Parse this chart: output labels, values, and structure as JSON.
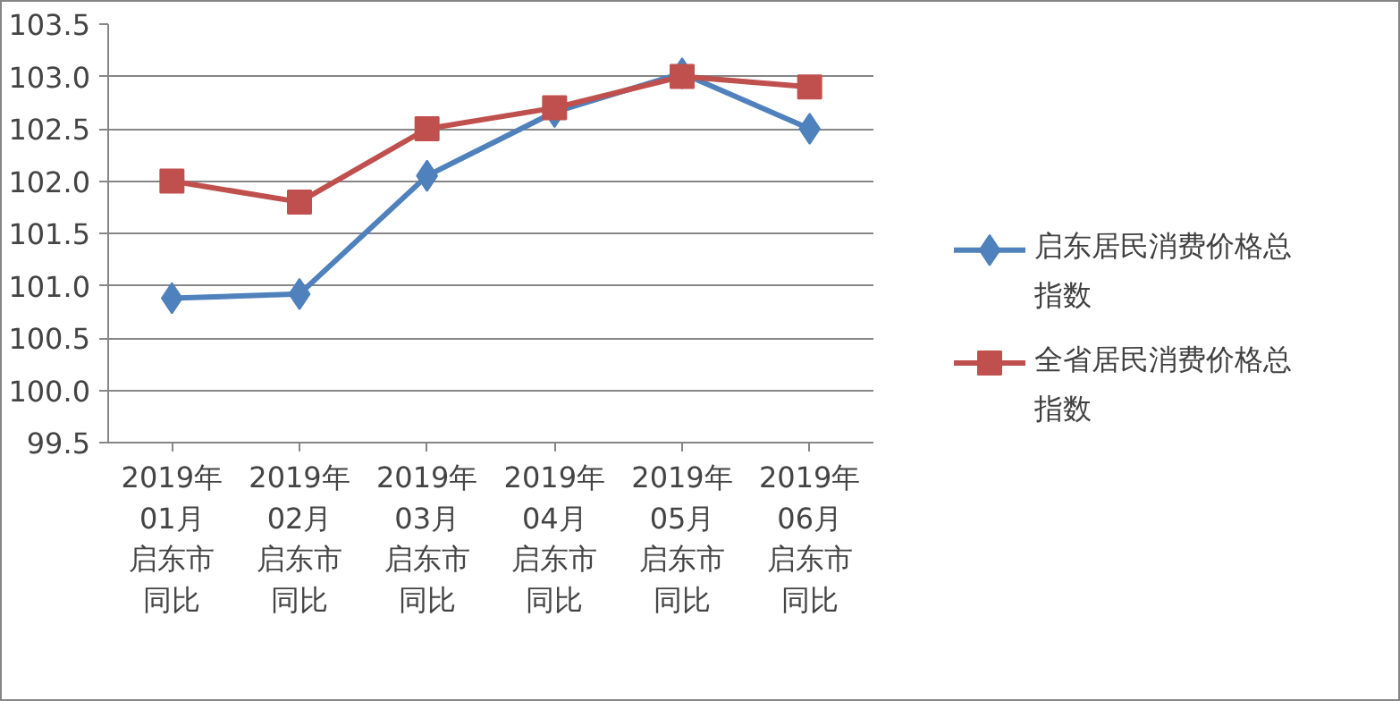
{
  "chart_data": {
    "type": "line",
    "categories": [
      "2019年01月启东市同比",
      "2019年02月启东市同比",
      "2019年03月启东市同比",
      "2019年04月启东市同比",
      "2019年05月启东市同比",
      "2019年06月启东市同比"
    ],
    "series": [
      {
        "name": "启东居民消费价格总指数",
        "color": "#4f81bd",
        "marker": "diamond",
        "values": [
          100.88,
          100.92,
          102.05,
          102.66,
          103.03,
          102.5
        ]
      },
      {
        "name": "全省居民消费价格总指数",
        "color": "#c0504d",
        "marker": "square",
        "values": [
          102.0,
          101.8,
          102.5,
          102.7,
          103.0,
          102.9
        ]
      }
    ],
    "ylim": [
      99.5,
      103.5
    ],
    "yticks": [
      {
        "value": 99.5,
        "label": "99.5"
      },
      {
        "value": 100,
        "label": "100.0"
      },
      {
        "value": 100.5,
        "label": "100.5"
      },
      {
        "value": 101,
        "label": "101.0"
      },
      {
        "value": 101.5,
        "label": "101.5"
      },
      {
        "value": 102,
        "label": "102.0"
      },
      {
        "value": 102.5,
        "label": "102.5"
      },
      {
        "value": 103,
        "label": "103.0"
      },
      {
        "value": 103.5,
        "label": "103.5"
      }
    ],
    "grid": "y",
    "legend": "right",
    "line_style": "solid"
  }
}
